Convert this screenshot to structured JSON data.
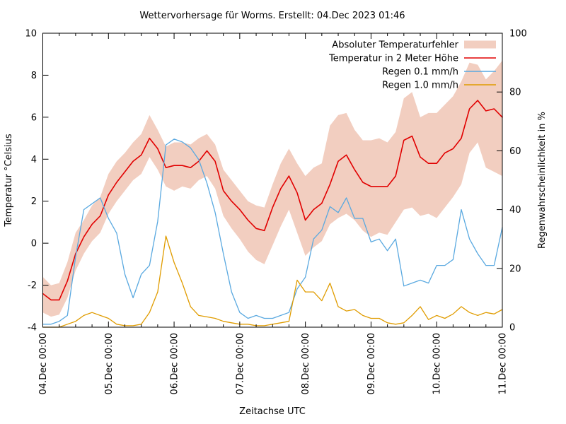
{
  "title": "Wettervorhersage für Worms. Erstellt: 04.Dec 2023 01:46",
  "axes": {
    "x": {
      "label": "Zeitachse UTC",
      "tick_labels": [
        "04.Dec 00:00",
        "05.Dec 00:00",
        "06.Dec 00:00",
        "07.Dec 00:00",
        "08.Dec 00:00",
        "09.Dec 00:00",
        "10.Dec 00:00",
        "11.Dec 00:00"
      ],
      "major_tick_every_hours": 24,
      "minor_tick_every_hours": 6,
      "range_hours": [
        0,
        168
      ]
    },
    "y_left": {
      "label": "Temperatur °Celsius",
      "min": -4,
      "max": 10,
      "tick_step": 2,
      "tick_labels": [
        "-4",
        "-2",
        "0",
        "2",
        "4",
        "6",
        "8",
        "10"
      ]
    },
    "y_right": {
      "label": "Regenwahrscheinlichkeit in %",
      "min": 0,
      "max": 100,
      "tick_step": 20,
      "tick_labels": [
        "0",
        "20",
        "40",
        "60",
        "80",
        "100"
      ]
    }
  },
  "legend": {
    "position": "top-right-inside",
    "items": [
      {
        "label": "Absoluter Temperaturfehler",
        "swatch": "band",
        "color": "#f2cec0"
      },
      {
        "label": "Temperatur in 2 Meter Höhe",
        "swatch": "line",
        "color": "#e10000"
      },
      {
        "label": "Regen 0.1 mm/h",
        "swatch": "line",
        "color": "#5aa9e0"
      },
      {
        "label": "Regen 1.0 mm/h",
        "swatch": "line",
        "color": "#e09c00"
      }
    ]
  },
  "colors": {
    "error_band": "#f2cec0",
    "temperature_line": "#e10000",
    "rain01_line": "#5aa9e0",
    "rain10_line": "#e09c00",
    "frame": "#000000"
  },
  "chart_data": {
    "type": "line",
    "title": "Wettervorhersage für Worms. Erstellt: 04.Dec 2023 01:46",
    "xlabel": "Zeitachse UTC",
    "ylabel_left": "Temperatur °Celsius",
    "ylabel_right": "Regenwahrscheinlichkeit in %",
    "ylim_left": [
      -4,
      10
    ],
    "ylim_right": [
      0,
      100
    ],
    "grid": false,
    "legend_position": "top-right inside",
    "x_unit": "hours after 04.Dec 2023 00:00 UTC",
    "x": [
      0,
      3,
      6,
      9,
      12,
      15,
      18,
      21,
      24,
      27,
      30,
      33,
      36,
      39,
      42,
      45,
      48,
      51,
      54,
      57,
      60,
      63,
      66,
      69,
      72,
      75,
      78,
      81,
      84,
      87,
      90,
      93,
      96,
      99,
      102,
      105,
      108,
      111,
      114,
      117,
      120,
      123,
      126,
      129,
      132,
      135,
      138,
      141,
      144,
      147,
      150,
      153,
      156,
      159,
      162,
      165,
      168
    ],
    "series": [
      {
        "name": "Absoluter Temperaturfehler (oberes Band)",
        "axis": "left",
        "style": "band-upper",
        "values": [
          -1.6,
          -2.0,
          -1.9,
          -0.9,
          0.5,
          1.1,
          1.8,
          2.2,
          3.3,
          3.9,
          4.3,
          4.8,
          5.2,
          6.1,
          5.4,
          4.6,
          4.8,
          4.8,
          4.7,
          5.0,
          5.2,
          4.7,
          3.5,
          3.0,
          2.5,
          2.0,
          1.8,
          1.7,
          2.8,
          3.8,
          4.5,
          3.8,
          3.2,
          3.6,
          3.8,
          5.6,
          6.1,
          6.2,
          5.4,
          4.9,
          4.9,
          5.0,
          4.8,
          5.3,
          6.9,
          7.2,
          6.0,
          6.2,
          6.2,
          6.6,
          7.0,
          7.7,
          8.6,
          8.5,
          7.8,
          8.2,
          8.7
        ]
      },
      {
        "name": "Absoluter Temperaturfehler (unteres Band)",
        "axis": "left",
        "style": "band-lower",
        "values": [
          -3.3,
          -3.5,
          -3.4,
          -2.6,
          -1.3,
          -0.5,
          0.1,
          0.5,
          1.4,
          2.0,
          2.5,
          3.0,
          3.3,
          4.1,
          3.5,
          2.7,
          2.5,
          2.7,
          2.6,
          3.0,
          3.2,
          2.6,
          1.3,
          0.7,
          0.2,
          -0.4,
          -0.8,
          -1.0,
          -0.1,
          0.8,
          1.6,
          0.5,
          -0.6,
          -0.2,
          0.1,
          0.9,
          1.2,
          1.4,
          1.1,
          0.6,
          0.3,
          0.5,
          0.4,
          1.0,
          1.6,
          1.7,
          1.3,
          1.4,
          1.2,
          1.7,
          2.2,
          2.8,
          4.3,
          4.8,
          3.6,
          3.4,
          3.2
        ]
      },
      {
        "name": "Temperatur in 2 Meter Höhe",
        "axis": "left",
        "style": "line",
        "values": [
          -2.4,
          -2.7,
          -2.7,
          -1.8,
          -0.5,
          0.3,
          0.9,
          1.3,
          2.3,
          2.9,
          3.4,
          3.9,
          4.2,
          5.0,
          4.5,
          3.6,
          3.7,
          3.7,
          3.6,
          3.9,
          4.4,
          3.9,
          2.5,
          2.0,
          1.6,
          1.1,
          0.7,
          0.6,
          1.7,
          2.6,
          3.2,
          2.4,
          1.1,
          1.6,
          1.9,
          2.8,
          3.9,
          4.2,
          3.5,
          2.9,
          2.7,
          2.7,
          2.7,
          3.2,
          4.9,
          5.1,
          4.1,
          3.8,
          3.8,
          4.3,
          4.5,
          5.0,
          6.4,
          6.8,
          6.3,
          6.4,
          6.0
        ]
      },
      {
        "name": "Regen 0.1 mm/h",
        "axis": "right",
        "style": "line",
        "values": [
          1,
          1,
          2,
          4,
          24,
          40,
          42,
          44,
          37,
          32,
          18,
          10,
          18,
          21,
          36,
          62,
          64,
          63,
          61,
          57,
          49,
          39,
          25,
          12,
          5,
          3,
          4,
          3,
          3,
          4,
          5,
          13,
          17,
          30,
          33,
          41,
          39,
          44,
          37,
          37,
          29,
          30,
          26,
          30,
          14,
          15,
          16,
          15,
          21,
          21,
          23,
          40,
          30,
          25,
          21,
          21,
          34
        ]
      },
      {
        "name": "Regen 1.0 mm/h",
        "axis": "right",
        "style": "line",
        "values": [
          0,
          0,
          0,
          1,
          2,
          4,
          5,
          4,
          3,
          1,
          0.5,
          0.5,
          1,
          5,
          12,
          31,
          22,
          15,
          7,
          4,
          3.5,
          3,
          2,
          1.5,
          1,
          1,
          0.5,
          0.5,
          1,
          1.5,
          2,
          16,
          12,
          12,
          9,
          15,
          7,
          5.5,
          6,
          4,
          3,
          3,
          1.5,
          1,
          1.5,
          4,
          7,
          2.6,
          4,
          3,
          4.5,
          7,
          5,
          4,
          5,
          4.5,
          6
        ]
      }
    ]
  }
}
